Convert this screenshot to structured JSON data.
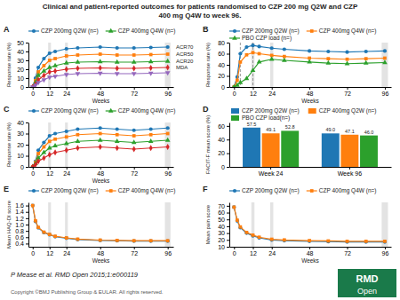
{
  "title": "Clinical and patient-reported outcomes for patients randomised to CZP 200 mg Q2W and CZP\n400 mg Q4W to week 96.",
  "subtitle": "P Mease et al. RMD Open 2015;1:e000119",
  "annotations": [
    {
      "text": "Copyright ©BMJ Publishing Group & EULAR. All rights reserved."
    },
    {
      "text": "RMD",
      "color": "#1a7a4a"
    },
    {
      "text": "Open"
    }
  ],
  "chart_data": [
    {
      "type": "line",
      "title": "A",
      "x": [
        0,
        2,
        4,
        8,
        12,
        16,
        24,
        32,
        48,
        60,
        72,
        84,
        96
      ],
      "xlim": [
        -3,
        100
      ],
      "xticks": [
        0,
        12,
        24,
        48,
        72,
        96
      ],
      "xlabel": "Weeks",
      "ylabel": "Response rate (%)",
      "ylim": [
        0,
        50
      ],
      "yticks": [
        0,
        10,
        20,
        30,
        40,
        50
      ],
      "grid": false,
      "legend": "top",
      "shade_x": [
        [
          11,
          13
        ],
        [
          23,
          25
        ],
        [
          94,
          98
        ]
      ],
      "series": [
        {
          "name": "CZP 200mg Q2W (n=)",
          "marker": "circle",
          "values": [
            0,
            10,
            22,
            32,
            38,
            40,
            43,
            44,
            45,
            44,
            44,
            44.5,
            45
          ]
        },
        {
          "marker": "square",
          "values": [
            0,
            7,
            17,
            24,
            30,
            32,
            35,
            36,
            37,
            36,
            36,
            36.5,
            37
          ]
        },
        {
          "name": "CZP 400mg Q4W (n=)",
          "marker": "triangle",
          "values": [
            0,
            5,
            13,
            18,
            22,
            24,
            27,
            28,
            28.5,
            28,
            28,
            28.5,
            29
          ]
        },
        {
          "marker": "diamond",
          "values": [
            0,
            3,
            8,
            13,
            17,
            18,
            20,
            21,
            21.5,
            21,
            21,
            21.5,
            22
          ]
        },
        {
          "marker": "triangle-down",
          "values": [
            0,
            2,
            5,
            8,
            11,
            12,
            14,
            15,
            15.5,
            15,
            15,
            15.5,
            16
          ]
        }
      ],
      "annotations": [
        {
          "text": "ACR70",
          "y": 45
        },
        {
          "text": "ACR50",
          "y": 37
        },
        {
          "text": "ACR20",
          "y": 29
        },
        {
          "text": "MDA",
          "y": 22
        }
      ]
    },
    {
      "type": "line",
      "title": "B",
      "x": [
        0,
        2,
        4,
        8,
        12,
        16,
        24,
        32,
        48,
        60,
        72,
        84,
        96
      ],
      "xlim": [
        -3,
        100
      ],
      "xticks": [
        0,
        12,
        24,
        48,
        72,
        96
      ],
      "xlabel": "Weeks",
      "ylabel": "Response rate (%)",
      "ylim": [
        0,
        80
      ],
      "yticks": [
        0,
        20,
        40,
        60,
        80
      ],
      "grid": false,
      "legend": "top",
      "shade_x": [
        [
          11,
          13
        ],
        [
          23,
          25
        ],
        [
          94,
          98
        ]
      ],
      "vlines": [
        4,
        12
      ],
      "series": [
        {
          "name": "CZP 200mg Q2W (n=)",
          "marker": "circle",
          "values": [
            0,
            18,
            60,
            72,
            75,
            73,
            70,
            68,
            65,
            64,
            63,
            64,
            65
          ]
        },
        {
          "name": "CZP 400mg Q4W (n=)",
          "marker": "square",
          "values": [
            0,
            12,
            45,
            58,
            62,
            60,
            57,
            55,
            52,
            51,
            50,
            51,
            52
          ]
        },
        {
          "name": "PBO CZP load (n=)",
          "marker": "triangle",
          "values": [
            0,
            3,
            8,
            15,
            30,
            45,
            50,
            48,
            45,
            43,
            42,
            43,
            44
          ]
        }
      ]
    },
    {
      "type": "line",
      "title": "C",
      "x": [
        0,
        2,
        4,
        8,
        12,
        16,
        24,
        32,
        48,
        60,
        72,
        84,
        96
      ],
      "xlim": [
        -3,
        100
      ],
      "xticks": [
        0,
        12,
        24,
        48,
        72,
        96
      ],
      "xlabel": "Weeks",
      "ylabel": "Response rate (%)",
      "ylim": [
        0,
        40
      ],
      "yticks": [
        0,
        10,
        20,
        30,
        40
      ],
      "grid": false,
      "legend": "top",
      "shade_x": [
        [
          11,
          13
        ],
        [
          23,
          25
        ],
        [
          94,
          98
        ]
      ],
      "series": [
        {
          "name": "CZP 200mg Q2W (n=)",
          "marker": "circle",
          "values": [
            0,
            5,
            15,
            22,
            28,
            30,
            32,
            34,
            35,
            34,
            33,
            34,
            35
          ]
        },
        {
          "marker": "square",
          "values": [
            0,
            4,
            12,
            18,
            23,
            25,
            27,
            29,
            30,
            29,
            28,
            29,
            30
          ]
        },
        {
          "name": "CZP 400mg Q4W (n=)",
          "marker": "triangle",
          "values": [
            0,
            3,
            8,
            13,
            17,
            19,
            21,
            23,
            24,
            23,
            22,
            23,
            24
          ]
        },
        {
          "marker": "diamond",
          "values": [
            0,
            2,
            5,
            8,
            11,
            13,
            15,
            17,
            18,
            17,
            16,
            17,
            18
          ]
        }
      ]
    },
    {
      "type": "bar",
      "title": "D",
      "categories": [
        "Week 24",
        "Week 96"
      ],
      "ylabel": "FACIT-F mean score (%)",
      "ylim": [
        0,
        65
      ],
      "yticks": [
        0,
        20,
        40,
        60
      ],
      "grid": false,
      "legend": "top",
      "data_labels": true,
      "series": [
        {
          "name": "CZP 200mg Q2W (n=)",
          "values": [
            57.5,
            49.0
          ],
          "value_labels": [
            "57.5",
            "49.0"
          ]
        },
        {
          "name": "CZP 400mg Q2W (n=)",
          "values": [
            49.1,
            47.1
          ],
          "value_labels": [
            "49.1",
            "47.1"
          ]
        },
        {
          "name": "PBO CZP load(n=)",
          "values": [
            52.8,
            46.0
          ],
          "value_labels": [
            "52.8",
            "46.0"
          ]
        }
      ]
    },
    {
      "type": "line",
      "title": "E",
      "x": [
        0,
        2,
        4,
        8,
        12,
        16,
        24,
        32,
        48,
        60,
        72,
        84,
        96
      ],
      "xlim": [
        -3,
        100
      ],
      "xticks": [
        0,
        12,
        24,
        48,
        72,
        96
      ],
      "xlabel": "Weeks",
      "ylabel": "Mean HAQ-DI score",
      "ylim": [
        0.3,
        1.7
      ],
      "yticks": [
        0.4,
        0.6,
        0.8,
        {
          "value": 1.0,
          "label": "1.0"
        },
        1.2,
        1.4,
        1.6
      ],
      "grid": false,
      "legend": "top",
      "shade_x": [
        [
          11,
          13
        ],
        [
          23,
          25
        ],
        [
          94,
          98
        ]
      ],
      "series": [
        {
          "name": "CZP 200mg Q2W (n=)",
          "marker": "circle",
          "values": [
            1.6,
            1.1,
            0.9,
            0.75,
            0.68,
            0.62,
            0.57,
            0.53,
            0.5,
            0.49,
            0.48,
            0.48,
            0.48
          ]
        },
        {
          "name": "CZP 400mg Q4W (n=)",
          "marker": "square",
          "values": [
            1.6,
            1.12,
            0.91,
            0.76,
            0.69,
            0.63,
            0.58,
            0.54,
            0.51,
            0.5,
            0.49,
            0.49,
            0.49
          ]
        }
      ]
    },
    {
      "type": "line",
      "title": "F",
      "x": [
        0,
        2,
        4,
        8,
        12,
        16,
        24,
        32,
        48,
        60,
        72,
        84,
        96
      ],
      "xlim": [
        -3,
        100
      ],
      "xticks": [
        0,
        12,
        24,
        48,
        72,
        96
      ],
      "xlabel": "Weeks",
      "ylabel": "Mean pain score",
      "ylim": [
        10,
        75
      ],
      "yticks": [
        10,
        20,
        30,
        40,
        50,
        60,
        70
      ],
      "grid": false,
      "legend": "top",
      "shade_x": [
        [
          11,
          13
        ],
        [
          23,
          25
        ],
        [
          94,
          98
        ]
      ],
      "series": [
        {
          "name": "CZP 200mg Q2W (n=)",
          "marker": "circle",
          "values": [
            68,
            48,
            38,
            30,
            26,
            23,
            20,
            19,
            18,
            17.5,
            17,
            17,
            17
          ]
        },
        {
          "name": "CZP 400mg Q4W (n=)",
          "marker": "square",
          "values": [
            68,
            49,
            39,
            31,
            27,
            24,
            21,
            20,
            19,
            18.5,
            18,
            18,
            18
          ]
        }
      ]
    }
  ]
}
